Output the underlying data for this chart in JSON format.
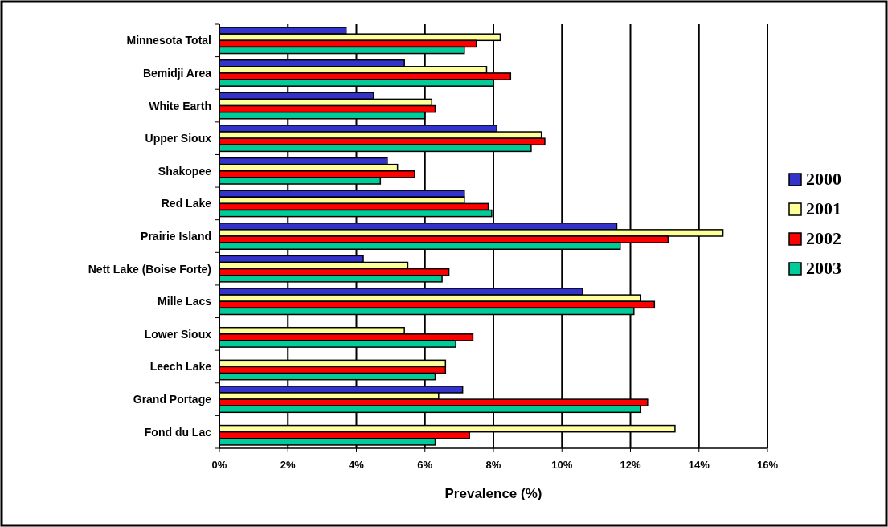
{
  "chart_data": {
    "type": "bar",
    "orientation": "horizontal",
    "xlabel": "Prevalence (%)",
    "categories": [
      "Minnesota Total",
      "Bemidji Area",
      "White Earth",
      "Upper Sioux",
      "Shakopee",
      "Red Lake",
      "Prairie Island",
      "Nett Lake (Boise Forte)",
      "Mille Lacs",
      "Lower Sioux",
      "Leech Lake",
      "Grand Portage",
      "Fond du Lac"
    ],
    "series": [
      {
        "name": "2000",
        "color": "#3333cc",
        "values": [
          3.7,
          5.4,
          4.5,
          8.1,
          4.9,
          7.15,
          11.6,
          4.2,
          10.6,
          null,
          null,
          7.1,
          null
        ]
      },
      {
        "name": "2001",
        "color": "#ffff99",
        "values": [
          8.2,
          7.8,
          6.2,
          9.4,
          5.2,
          7.15,
          14.7,
          5.5,
          12.3,
          5.4,
          6.6,
          6.4,
          13.3
        ]
      },
      {
        "name": "2002",
        "color": "#ff0000",
        "values": [
          7.5,
          8.5,
          6.3,
          9.5,
          5.7,
          7.85,
          13.1,
          6.7,
          12.7,
          7.4,
          6.6,
          12.5,
          7.3
        ]
      },
      {
        "name": "2003",
        "color": "#00cc99",
        "values": [
          7.15,
          8.0,
          6.0,
          9.1,
          4.7,
          7.95,
          11.7,
          6.5,
          12.1,
          6.9,
          6.3,
          12.3,
          6.3
        ]
      }
    ],
    "xlim": [
      0,
      16
    ],
    "xticks": [
      {
        "value": 0,
        "label": "0%"
      },
      {
        "value": 2,
        "label": "2%"
      },
      {
        "value": 4,
        "label": "4%"
      },
      {
        "value": 6,
        "label": "6%"
      },
      {
        "value": 8,
        "label": "8%"
      },
      {
        "value": 10,
        "label": "10%"
      },
      {
        "value": 12,
        "label": "12%"
      },
      {
        "value": 14,
        "label": "14%"
      },
      {
        "value": 16,
        "label": "16%"
      }
    ],
    "grid": "x",
    "legend": "right"
  }
}
